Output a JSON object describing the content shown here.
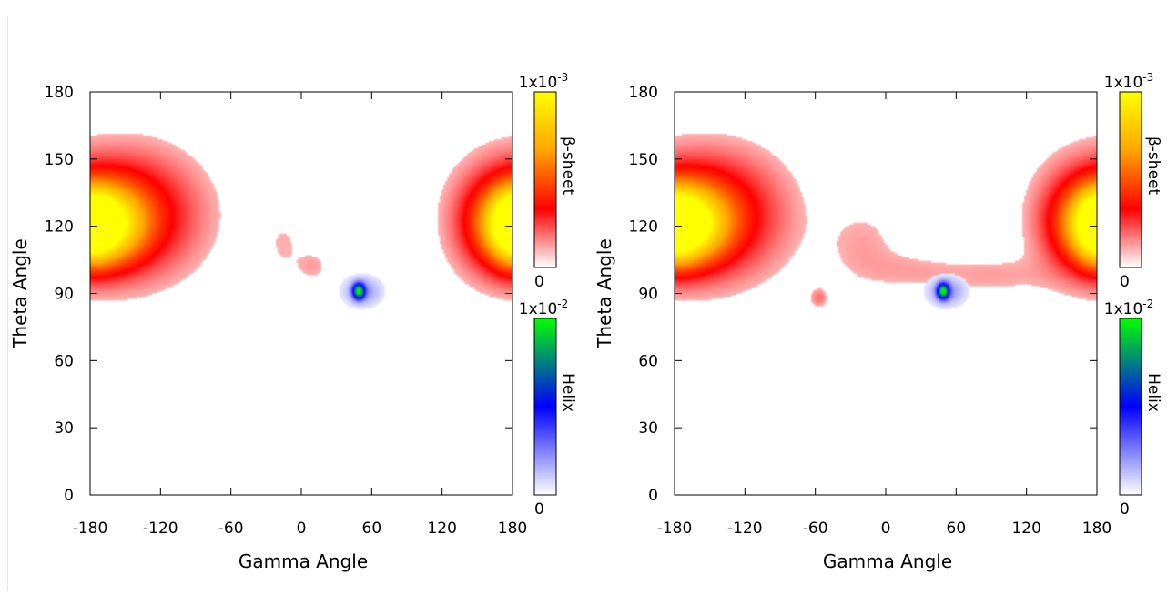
{
  "colors": {
    "sheet_scale": [
      "#ffffff",
      "#ff0000",
      "#ffa500",
      "#ffff00"
    ],
    "helix_scale": [
      "#ffffff",
      "#0000ff",
      "#00ff00"
    ],
    "axis": "#000000"
  },
  "chart_data": [
    {
      "type": "heatmap",
      "title": "",
      "xlabel": "Gamma Angle",
      "ylabel": "Theta Angle",
      "xlim": [
        -180,
        180
      ],
      "ylim": [
        0,
        180
      ],
      "xticks": [
        -180,
        -120,
        -60,
        0,
        60,
        120,
        180
      ],
      "yticks": [
        0,
        30,
        60,
        90,
        120,
        150,
        180
      ],
      "grid": false,
      "series": [
        {
          "name": "β-sheet",
          "colorbar": {
            "min_label": "0",
            "max_label": "1x10",
            "max_exp": "-3",
            "min": 0,
            "max": 0.001
          },
          "blobs": [
            {
              "gamma": -170,
              "theta": 121,
              "amp": 0.00095,
              "sg": 22,
              "st": 11
            },
            {
              "gamma": -150,
              "theta": 125,
              "amp": 0.00035,
              "sg": 40,
              "st": 18
            },
            {
              "gamma": 180,
              "theta": 120,
              "amp": 0.0006,
              "sg": 12,
              "st": 10
            },
            {
              "gamma": 160,
              "theta": 122,
              "amp": 0.00015,
              "sg": 22,
              "st": 16
            },
            {
              "gamma": -15,
              "theta": 112,
              "amp": 5e-05,
              "sg": 12,
              "st": 10
            },
            {
              "gamma": 10,
              "theta": 102,
              "amp": 6e-05,
              "sg": 10,
              "st": 5
            }
          ]
        },
        {
          "name": "Helix",
          "colorbar": {
            "min_label": "0",
            "max_label": "1x10",
            "max_exp": "-2",
            "min": 0,
            "max": 0.01
          },
          "blobs": [
            {
              "gamma": 49,
              "theta": 91,
              "amp": 0.0092,
              "sg": 3.2,
              "st": 2.2
            },
            {
              "gamma": 52,
              "theta": 91,
              "amp": 0.0015,
              "sg": 10,
              "st": 4
            }
          ]
        }
      ]
    },
    {
      "type": "heatmap",
      "title": "",
      "xlabel": "Gamma Angle",
      "ylabel": "Theta Angle",
      "xlim": [
        -180,
        180
      ],
      "ylim": [
        0,
        180
      ],
      "xticks": [
        -180,
        -120,
        -60,
        0,
        60,
        120,
        180
      ],
      "yticks": [
        0,
        30,
        60,
        90,
        120,
        150,
        180
      ],
      "grid": false,
      "series": [
        {
          "name": "β-sheet",
          "colorbar": {
            "min_label": "0",
            "max_label": "1x10",
            "max_exp": "-3",
            "min": 0,
            "max": 0.001
          },
          "blobs": [
            {
              "gamma": -170,
              "theta": 121,
              "amp": 0.00095,
              "sg": 22,
              "st": 11
            },
            {
              "gamma": -150,
              "theta": 125,
              "amp": 0.00035,
              "sg": 40,
              "st": 18
            },
            {
              "gamma": 180,
              "theta": 120,
              "amp": 0.0006,
              "sg": 12,
              "st": 10
            },
            {
              "gamma": 160,
              "theta": 122,
              "amp": 0.00015,
              "sg": 22,
              "st": 16
            },
            {
              "gamma": -20,
              "theta": 112,
              "amp": 6e-05,
              "sg": 22,
              "st": 12
            },
            {
              "gamma": 20,
              "theta": 100,
              "amp": 5e-05,
              "sg": 28,
              "st": 6
            },
            {
              "gamma": 90,
              "theta": 98,
              "amp": 6e-05,
              "sg": 35,
              "st": 6
            },
            {
              "gamma": -57,
              "theta": 88,
              "amp": 0.0001,
              "sg": 5,
              "st": 3
            }
          ]
        },
        {
          "name": "Helix",
          "colorbar": {
            "min_label": "0",
            "max_label": "1x10",
            "max_exp": "-2",
            "min": 0,
            "max": 0.01
          },
          "blobs": [
            {
              "gamma": 49,
              "theta": 91,
              "amp": 0.0092,
              "sg": 3.2,
              "st": 2.2
            },
            {
              "gamma": 52,
              "theta": 91,
              "amp": 0.0015,
              "sg": 10,
              "st": 4
            }
          ]
        }
      ]
    }
  ]
}
